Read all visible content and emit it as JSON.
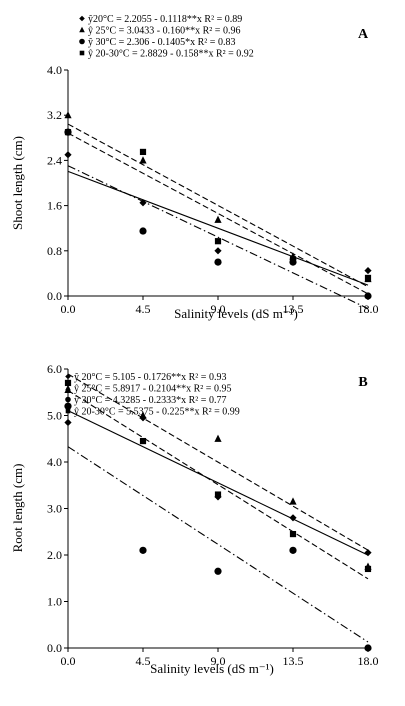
{
  "chart_data": [
    {
      "type": "scatter",
      "panel_label": "A",
      "xlabel": "Salinity levels (dS m⁻¹)",
      "ylabel": "Shoot length  (cm)",
      "x_ticks": [
        "0.0",
        "4.5",
        "9.0",
        "13.5",
        "18.0"
      ],
      "y_ticks": [
        "0.0",
        "0.8",
        "1.6",
        "2.4",
        "3.2",
        "4.0"
      ],
      "xlim": [
        0,
        18
      ],
      "ylim": [
        0,
        4.0
      ],
      "grid": false,
      "legend_position": "top",
      "x": [
        0,
        4.5,
        9,
        13.5,
        18
      ],
      "series": [
        {
          "equation": "ŷ20°C = 2.2055  - 0.1118**x  R² = 0.89",
          "marker": "diamond",
          "line": "solid",
          "values": [
            2.5,
            1.65,
            0.8,
            0.65,
            0.45
          ],
          "intercept": 2.2055,
          "slope": -0.1118
        },
        {
          "equation": "ŷ 25°C = 3.0433  - 0.160**x  R² = 0.96",
          "marker": "triangle",
          "line": "dashed",
          "values": [
            3.2,
            2.4,
            1.35,
            0.7,
            0.3
          ],
          "intercept": 3.0433,
          "slope": -0.16
        },
        {
          "equation": "ŷ 30°C = 2.306  - 0.1405*x  R² = 0.83",
          "marker": "circle",
          "line": "dashdot",
          "values": [
            2.9,
            1.15,
            0.6,
            0.6,
            0.0
          ],
          "intercept": 2.306,
          "slope": -0.1405
        },
        {
          "equation": "ŷ 20-30°C = 2.8829  - 0.158**x  R² = 0.92",
          "marker": "square",
          "line": "dashed",
          "values": [
            2.9,
            2.55,
            0.97,
            0.65,
            0.32
          ],
          "intercept": 2.8829,
          "slope": -0.158
        }
      ]
    },
    {
      "type": "scatter",
      "panel_label": "B",
      "xlabel": "Salinity levels  (dS m⁻¹)",
      "ylabel": "Root length  (cm)",
      "x_ticks": [
        "0.0",
        "4.5",
        "9.0",
        "13.5",
        "18.0"
      ],
      "y_ticks": [
        "0.0",
        "1.0",
        "2.0",
        "3.0",
        "4.0",
        "5.0",
        "6.0"
      ],
      "xlim": [
        0,
        18
      ],
      "ylim": [
        0,
        6.0
      ],
      "grid": false,
      "legend_position": "top",
      "x": [
        0,
        4.5,
        9,
        13.5,
        18
      ],
      "series": [
        {
          "equation": "ŷ 20°C = 5.105  - 0.1726**x  R² = 0.93",
          "marker": "diamond",
          "line": "solid",
          "values": [
            4.85,
            4.95,
            3.25,
            2.8,
            2.05
          ],
          "intercept": 5.105,
          "slope": -0.1726
        },
        {
          "equation": "ŷ 25°C = 5.8917  - 0.2104**x  R² = 0.95",
          "marker": "triangle",
          "line": "dashed",
          "values": [
            5.55,
            5.0,
            4.5,
            3.15,
            1.75
          ],
          "intercept": 5.8917,
          "slope": -0.2104
        },
        {
          "equation": "ŷ 30°C = 4.3285  - 0.2333*x  R² = 0.77",
          "marker": "circle",
          "line": "dashdot",
          "values": [
            5.2,
            2.1,
            1.65,
            2.1,
            0.0
          ],
          "intercept": 4.3285,
          "slope": -0.2333
        },
        {
          "equation": "ŷ 20-30°C = 5.5375  - 0.225**x  R² = 0.99",
          "marker": "square",
          "line": "dashed",
          "values": [
            5.7,
            4.45,
            3.3,
            2.45,
            1.7
          ],
          "intercept": 5.5375,
          "slope": -0.225
        }
      ]
    }
  ]
}
